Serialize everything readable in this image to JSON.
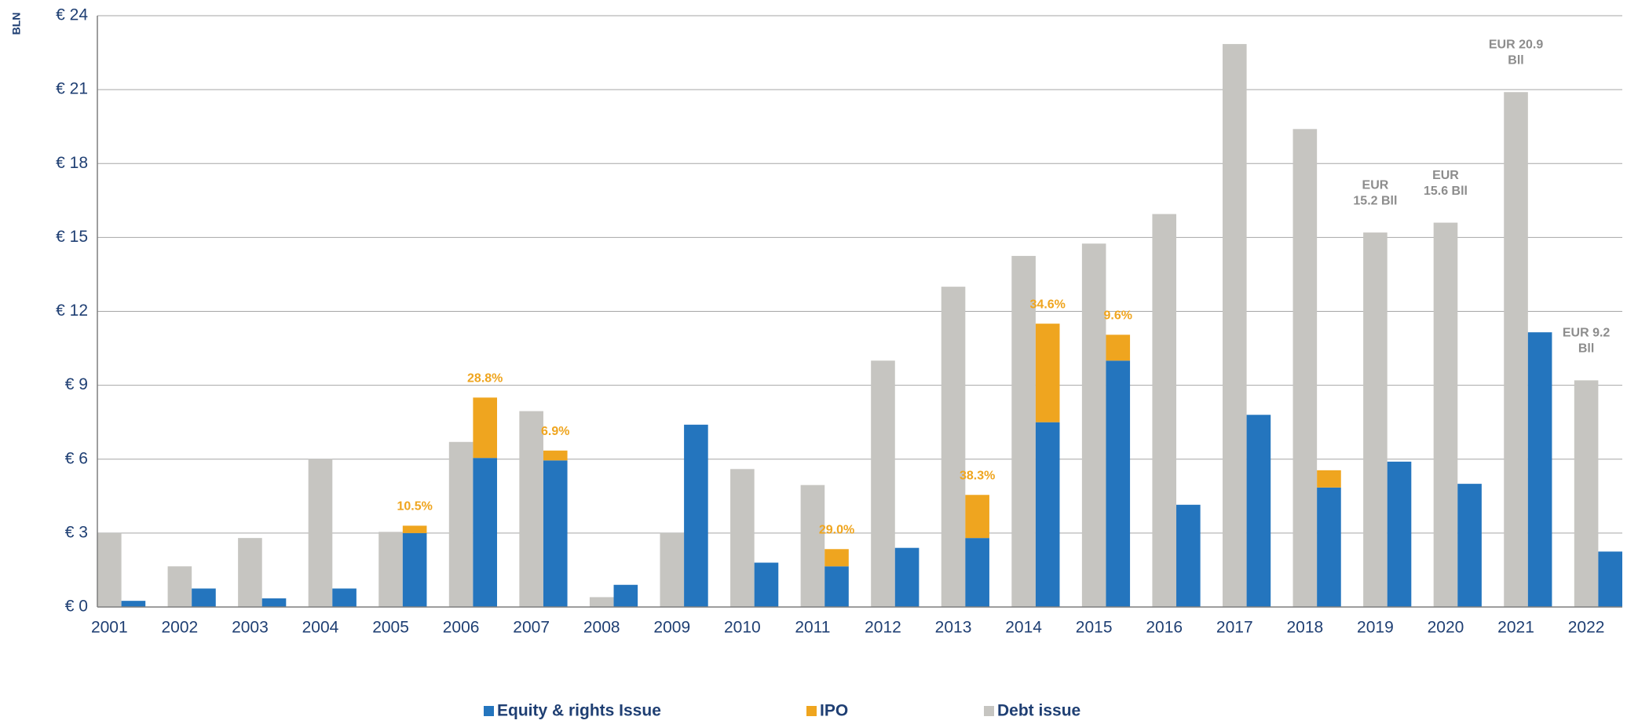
{
  "chart_data": {
    "type": "bar",
    "ylabel": "BLN",
    "categories": [
      "2001",
      "2002",
      "2003",
      "2004",
      "2005",
      "2006",
      "2007",
      "2008",
      "2009",
      "2010",
      "2011",
      "2012",
      "2013",
      "2014",
      "2015",
      "2016",
      "2017",
      "2018",
      "2019",
      "2020",
      "2021",
      "2022"
    ],
    "series": [
      {
        "name": "Equity & rights Issue",
        "color": "#2475be",
        "values": [
          0.25,
          0.75,
          0.35,
          0.75,
          3.0,
          6.05,
          5.95,
          0.9,
          7.4,
          1.8,
          1.65,
          2.4,
          2.8,
          7.5,
          10.0,
          4.15,
          7.8,
          4.85,
          5.9,
          5.0,
          11.15,
          2.25
        ]
      },
      {
        "name": "IPO",
        "color": "#efa51f",
        "values": [
          null,
          null,
          null,
          null,
          0.3,
          2.45,
          0.4,
          null,
          null,
          null,
          0.7,
          null,
          1.75,
          4.0,
          1.05,
          null,
          null,
          0.7,
          null,
          null,
          null,
          null
        ],
        "labels": [
          null,
          null,
          null,
          null,
          "10.5%",
          "28.8%",
          "6.9%",
          null,
          null,
          null,
          "29.0%",
          null,
          "38.3%",
          "34.6%",
          "9.6%",
          null,
          null,
          null,
          null,
          null,
          null,
          null
        ]
      },
      {
        "name": "Debt issue",
        "color": "#c6c5c1",
        "values": [
          3.0,
          1.65,
          2.8,
          6.0,
          3.05,
          6.7,
          7.95,
          0.4,
          3.0,
          5.6,
          4.95,
          10.0,
          13.0,
          14.25,
          14.75,
          15.95,
          22.85,
          19.4,
          15.2,
          15.6,
          20.9,
          9.2
        ],
        "labels": [
          null,
          null,
          null,
          null,
          null,
          null,
          null,
          null,
          null,
          null,
          null,
          null,
          null,
          null,
          null,
          null,
          null,
          null,
          [
            "EUR",
            "15.2 Bll"
          ],
          [
            "EUR",
            "15.6  Bll"
          ],
          [
            "EUR 20.9",
            "Bll"
          ],
          [
            "EUR 9.2",
            "Bll"
          ]
        ]
      }
    ],
    "ylim": [
      0,
      24
    ],
    "yticks": [
      {
        "value": 0,
        "label": "€ 0"
      },
      {
        "value": 3,
        "label": "€ 3"
      },
      {
        "value": 6,
        "label": "€ 6"
      },
      {
        "value": 9,
        "label": "€ 9"
      },
      {
        "value": 12,
        "label": "€ 12"
      },
      {
        "value": 15,
        "label": "€ 15"
      },
      {
        "value": 18,
        "label": "€ 18"
      },
      {
        "value": 21,
        "label": "€ 21"
      },
      {
        "value": 24,
        "label": "€ 24"
      }
    ],
    "grid": true,
    "legend": "bottom"
  }
}
